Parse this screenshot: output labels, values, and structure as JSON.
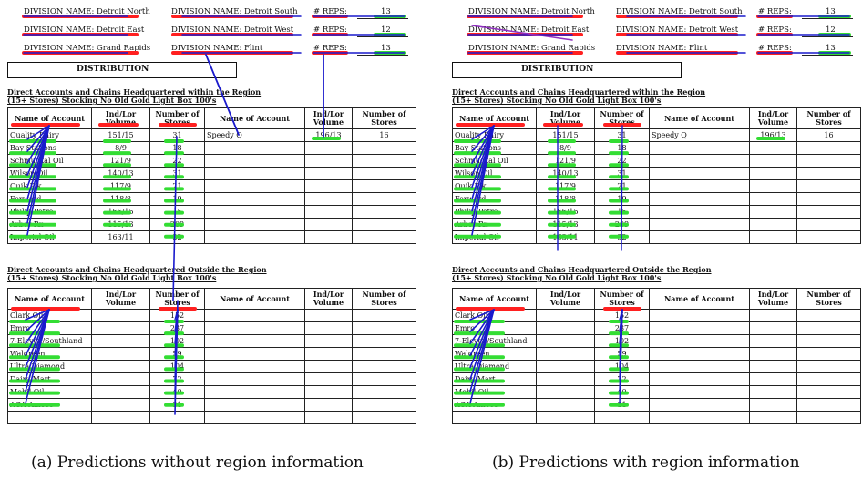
{
  "header_rows": [
    {
      "c1": "DIVISION NAME: Detroit North",
      "c2": "DIVISION NAME: Detroit South",
      "reps": "# REPS:",
      "n": "13"
    },
    {
      "c1": "DIVISION NAME: Detroit East",
      "c2": "DIVISION NAME: Detroit West",
      "reps": "# REPS:",
      "n": "12"
    },
    {
      "c1": "DIVISION NAME: Grand Rapids",
      "c2": "DIVISION NAME: Flint",
      "reps": "# REPS:",
      "n": "13"
    }
  ],
  "distribution_label": "DISTRIBUTION",
  "section1": {
    "title": "Direct Accounts and Chains Headquartered within the Region",
    "subtitle": "(15+ Stores) Stocking No Old Gold Light Box 100's"
  },
  "section2": {
    "title": "Direct Accounts and Chains Headquartered Outside the Region",
    "subtitle": "(15+ Stores) Stocking No Old Gold Light Box 100's"
  },
  "columns": {
    "name": "Name of Account",
    "vol": "Ind/Lor Volume",
    "stores": "Number of Stores"
  },
  "table1": [
    {
      "name": "Quality Dairy",
      "vol": "151/15",
      "stores": "31"
    },
    {
      "name": "Bay Stations",
      "vol": "8/9",
      "stores": "18"
    },
    {
      "name": "Schmuckal Oil",
      "vol": "121/9",
      "stores": "22"
    },
    {
      "name": "Wilson Oil",
      "vol": "140/13",
      "stores": "31"
    },
    {
      "name": "Quik Pik",
      "vol": "117/9",
      "stores": "21"
    },
    {
      "name": "Forward",
      "vol": "118/8",
      "stores": "19"
    },
    {
      "name": "Philip Petro",
      "vol": "166/15",
      "stores": "15"
    },
    {
      "name": "Arbor Rx",
      "vol": "115/13",
      "stores": "209"
    },
    {
      "name": "Imperial Oil",
      "vol": "163/11",
      "stores": "32"
    }
  ],
  "table1_right": {
    "name": "Speedy Q",
    "vol": "196/13",
    "stores": "16"
  },
  "table2": [
    {
      "name": "Clark Oil",
      "stores": "152"
    },
    {
      "name": "Emro",
      "stores": "237"
    },
    {
      "name": "7-Eleven/Southland",
      "stores": "102"
    },
    {
      "name": "Walgreen",
      "stores": "59"
    },
    {
      "name": "Ultra Diamond",
      "stores": "104"
    },
    {
      "name": "Dairy Mart",
      "stores": "72"
    },
    {
      "name": "Mobil Oil",
      "stores": "40"
    },
    {
      "name": "ACA Amoco",
      "stores": "31"
    }
  ],
  "captions": {
    "a": "(a) Predictions without region information",
    "b": "(b) Predictions with region information"
  },
  "colors": {
    "key": "#ff2020",
    "value": "#33dd33",
    "link": "#1a1acc",
    "link_alt": "#9030c0"
  }
}
